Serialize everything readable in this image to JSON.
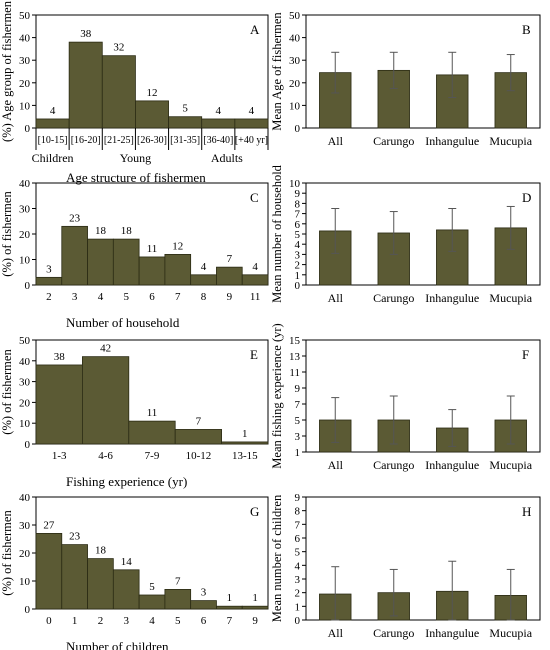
{
  "chart_data": [
    {
      "id": "A",
      "panel_label": "A",
      "type": "bar",
      "ylabel": "(%) Age group of fishermen",
      "xlabel": "Age structure of fishermen",
      "ylim": [
        0,
        50
      ],
      "yticks": [
        0,
        10,
        20,
        30,
        40,
        50
      ],
      "categories": [
        "[10-15]",
        "[16-20]",
        "[21-25]",
        "[26-30]",
        "[31-35]",
        "[36-40]",
        "[+40 yr]"
      ],
      "values": [
        4,
        38,
        32,
        12,
        5,
        4,
        4
      ],
      "value_labels": [
        "4",
        "38",
        "32",
        "12",
        "5",
        "4",
        "4"
      ],
      "groups": [
        {
          "label": "Children",
          "from": 0,
          "to": 0
        },
        {
          "label": "Young",
          "from": 1,
          "to": 4
        },
        {
          "label": "Adults",
          "from": 5,
          "to": 6
        }
      ]
    },
    {
      "id": "B",
      "panel_label": "B",
      "type": "bar",
      "ylabel": "Mean Age of fishermen",
      "ylim": [
        0,
        50
      ],
      "yticks": [
        0,
        10,
        20,
        30,
        40,
        50
      ],
      "categories": [
        "All",
        "Carungo",
        "Inhangulue",
        "Mucupia"
      ],
      "values": [
        24.5,
        25.5,
        23.5,
        24.5
      ],
      "errors": [
        9,
        8,
        10,
        8
      ]
    },
    {
      "id": "C",
      "panel_label": "C",
      "type": "bar",
      "ylabel": "(%) of fishermen",
      "xlabel": "Number of household",
      "ylim": [
        0,
        40
      ],
      "yticks": [
        0,
        10,
        20,
        30,
        40
      ],
      "categories": [
        "2",
        "3",
        "4",
        "5",
        "6",
        "7",
        "8",
        "9",
        "11"
      ],
      "values": [
        3,
        23,
        18,
        18,
        11,
        12,
        4,
        7,
        4
      ],
      "value_labels": [
        "3",
        "23",
        "18",
        "18",
        "11",
        "12",
        "4",
        "7",
        "4"
      ]
    },
    {
      "id": "D",
      "panel_label": "D",
      "type": "bar",
      "ylabel": "Mean number of household",
      "ylim": [
        0,
        10
      ],
      "yticks": [
        0,
        1,
        2,
        3,
        4,
        5,
        6,
        7,
        8,
        9,
        10
      ],
      "categories": [
        "All",
        "Carungo",
        "Inhangulue",
        "Mucupia"
      ],
      "values": [
        5.3,
        5.1,
        5.4,
        5.6
      ],
      "errors": [
        2.2,
        2.1,
        2.1,
        2.1
      ]
    },
    {
      "id": "E",
      "panel_label": "E",
      "type": "bar",
      "ylabel": "(%) of fishermen",
      "xlabel": "Fishing experience (yr)",
      "ylim": [
        0,
        50
      ],
      "yticks": [
        0,
        10,
        20,
        30,
        40,
        50
      ],
      "categories": [
        "1-3",
        "4-6",
        "7-9",
        "10-12",
        "13-15"
      ],
      "values": [
        38,
        42,
        11,
        7,
        1
      ],
      "value_labels": [
        "38",
        "42",
        "11",
        "7",
        "1"
      ]
    },
    {
      "id": "F",
      "panel_label": "F",
      "type": "bar",
      "ylabel": "Mean fishing experience (yr)",
      "ylim": [
        1,
        15
      ],
      "yticks": [
        1,
        3,
        5,
        7,
        9,
        11,
        13,
        15
      ],
      "categories": [
        "All",
        "Carungo",
        "Inhangulue",
        "Mucupia"
      ],
      "values": [
        5,
        5,
        4,
        5
      ],
      "errors": [
        2.8,
        3,
        2.3,
        3
      ]
    },
    {
      "id": "G",
      "panel_label": "G",
      "type": "bar",
      "ylabel": "(%) of fishermen",
      "xlabel": "Number of children",
      "ylim": [
        0,
        40
      ],
      "yticks": [
        0,
        10,
        20,
        30,
        40
      ],
      "categories": [
        "0",
        "1",
        "2",
        "3",
        "4",
        "5",
        "6",
        "7",
        "9"
      ],
      "values": [
        27,
        23,
        18,
        14,
        5,
        7,
        3,
        1,
        1
      ],
      "value_labels": [
        "27",
        "23",
        "18",
        "14",
        "5",
        "7",
        "3",
        "1",
        "1"
      ]
    },
    {
      "id": "H",
      "panel_label": "H",
      "type": "bar",
      "ylabel": "Mean number of children",
      "ylim": [
        0,
        9
      ],
      "yticks": [
        0,
        1,
        2,
        3,
        4,
        5,
        6,
        7,
        8,
        9
      ],
      "categories": [
        "All",
        "Carungo",
        "Inhangulue",
        "Mucupia"
      ],
      "values": [
        1.9,
        2,
        2.1,
        1.8
      ],
      "errors": [
        2,
        1.7,
        2.2,
        1.9
      ]
    }
  ]
}
